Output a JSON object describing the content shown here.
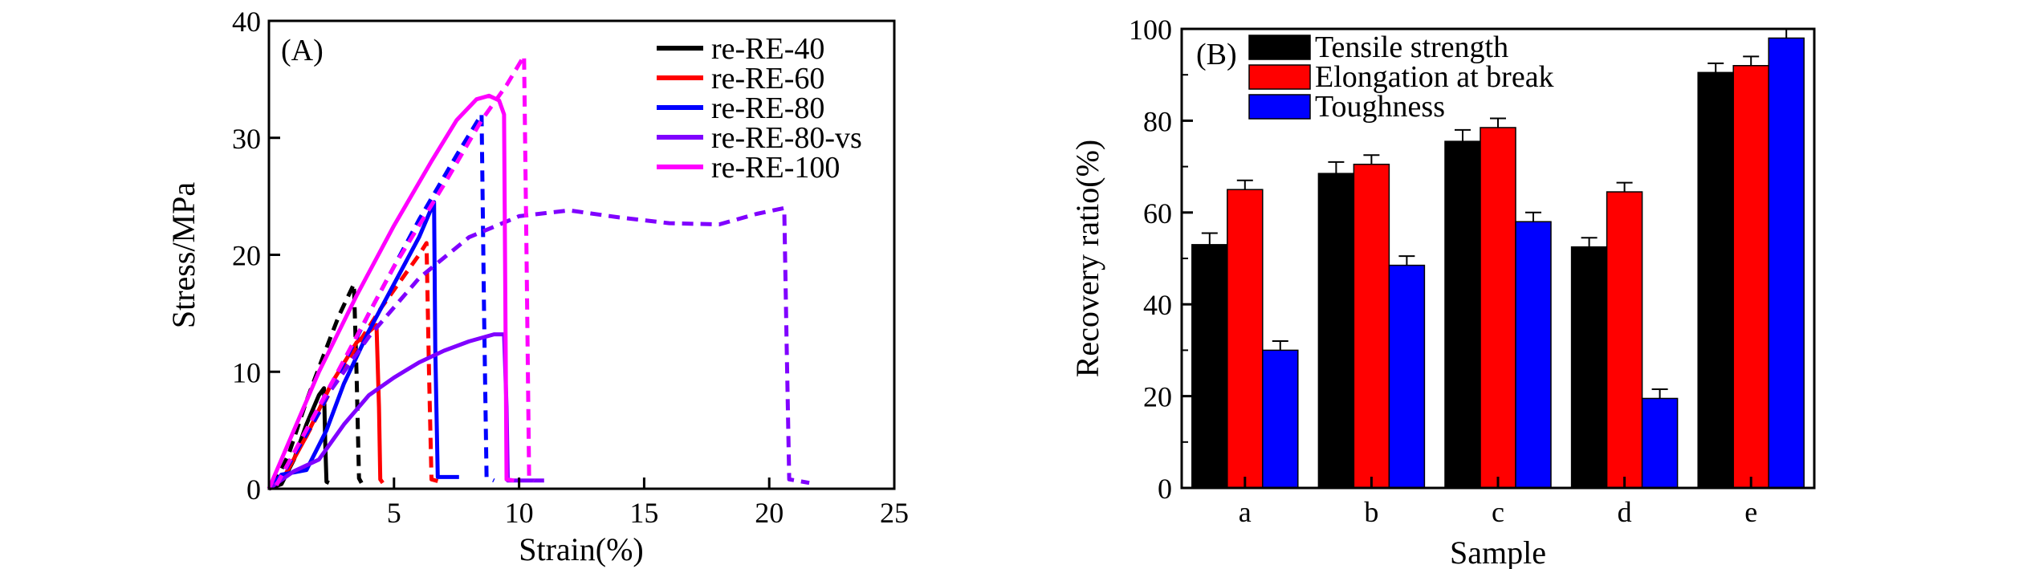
{
  "chart_data": [
    {
      "type": "line",
      "panel_label": "(A)",
      "xlabel": "Strain(%)",
      "ylabel": "Stress/MPa",
      "xlim": [
        0,
        25
      ],
      "ylim": [
        0,
        40
      ],
      "xticks": [
        5,
        10,
        15,
        20,
        25
      ],
      "yticks": [
        0,
        10,
        20,
        30,
        40
      ],
      "legend_position": "top-right",
      "series": [
        {
          "name": "re-RE-40",
          "color": "#000000",
          "solid": [
            [
              0,
              0
            ],
            [
              0.5,
              0.4
            ],
            [
              1.0,
              2.5
            ],
            [
              1.5,
              5.5
            ],
            [
              2.0,
              8.0
            ],
            [
              2.2,
              8.6
            ],
            [
              2.25,
              4.0
            ],
            [
              2.3,
              0.6
            ],
            [
              2.4,
              0.5
            ]
          ],
          "dashed": [
            [
              0.2,
              0.3
            ],
            [
              0.8,
              3.0
            ],
            [
              1.5,
              7.5
            ],
            [
              2.2,
              11.5
            ],
            [
              2.8,
              14.8
            ],
            [
              3.4,
              17.5
            ],
            [
              3.5,
              10.0
            ],
            [
              3.6,
              0.9
            ],
            [
              3.7,
              0.5
            ]
          ]
        },
        {
          "name": "re-RE-60",
          "color": "#ff0000",
          "solid": [
            [
              0,
              0
            ],
            [
              0.6,
              1.0
            ],
            [
              1.5,
              4.5
            ],
            [
              2.5,
              9.0
            ],
            [
              3.5,
              12.5
            ],
            [
              4.3,
              14.0
            ],
            [
              4.4,
              7.0
            ],
            [
              4.45,
              0.8
            ],
            [
              4.55,
              0.5
            ]
          ],
          "dashed": [
            [
              0.3,
              0.3
            ],
            [
              1.5,
              4.5
            ],
            [
              3.0,
              10.5
            ],
            [
              4.5,
              15.5
            ],
            [
              6.0,
              20.0
            ],
            [
              6.3,
              21.0
            ],
            [
              6.4,
              10.0
            ],
            [
              6.5,
              0.8
            ],
            [
              7.0,
              0.5
            ]
          ]
        },
        {
          "name": "re-RE-80",
          "color": "#0000ff",
          "solid": [
            [
              0,
              0
            ],
            [
              0.5,
              1.2
            ],
            [
              1.5,
              1.6
            ],
            [
              2.3,
              5.0
            ],
            [
              3.0,
              9.0
            ],
            [
              4.0,
              13.5
            ],
            [
              5.0,
              17.5
            ],
            [
              6.0,
              21.5
            ],
            [
              6.6,
              24.5
            ],
            [
              6.65,
              12.0
            ],
            [
              6.75,
              1.0
            ],
            [
              7.6,
              1.0
            ]
          ],
          "dashed": [
            [
              0.3,
              0.3
            ],
            [
              2.0,
              6.5
            ],
            [
              4.0,
              15.0
            ],
            [
              6.0,
              23.0
            ],
            [
              7.5,
              28.5
            ],
            [
              8.5,
              32.0
            ],
            [
              8.6,
              15.0
            ],
            [
              8.7,
              1.0
            ],
            [
              9.0,
              0.7
            ]
          ]
        },
        {
          "name": "re-RE-80-vs",
          "color": "#8000ff",
          "solid": [
            [
              0,
              0
            ],
            [
              1.0,
              1.5
            ],
            [
              2.0,
              2.5
            ],
            [
              3.0,
              5.5
            ],
            [
              4.0,
              8.0
            ],
            [
              5.0,
              9.5
            ],
            [
              6.0,
              10.8
            ],
            [
              7.0,
              11.8
            ],
            [
              8.0,
              12.6
            ],
            [
              9.0,
              13.2
            ],
            [
              9.4,
              13.2
            ],
            [
              9.5,
              7.0
            ],
            [
              9.55,
              0.7
            ],
            [
              11.0,
              0.7
            ]
          ],
          "dashed": [
            [
              0.3,
              0.3
            ],
            [
              2.0,
              7.0
            ],
            [
              4.0,
              13.0
            ],
            [
              6.0,
              18.0
            ],
            [
              8.0,
              21.5
            ],
            [
              10.0,
              23.3
            ],
            [
              12.0,
              23.8
            ],
            [
              14.0,
              23.2
            ],
            [
              16.0,
              22.7
            ],
            [
              18.0,
              22.6
            ],
            [
              19.5,
              23.5
            ],
            [
              20.6,
              24.0
            ],
            [
              20.7,
              12.0
            ],
            [
              20.8,
              0.8
            ],
            [
              21.6,
              0.5
            ]
          ]
        },
        {
          "name": "re-RE-100",
          "color": "#ff00ff",
          "solid": [
            [
              0,
              0
            ],
            [
              0.8,
              4.0
            ],
            [
              2.0,
              10.0
            ],
            [
              3.5,
              16.5
            ],
            [
              5.0,
              22.5
            ],
            [
              6.5,
              28.0
            ],
            [
              7.5,
              31.5
            ],
            [
              8.3,
              33.3
            ],
            [
              8.8,
              33.6
            ],
            [
              9.2,
              33.2
            ],
            [
              9.4,
              32.0
            ],
            [
              9.45,
              16.0
            ],
            [
              9.5,
              0.8
            ],
            [
              9.8,
              0.7
            ]
          ],
          "dashed": [
            [
              0.3,
              0.3
            ],
            [
              2.5,
              9.0
            ],
            [
              5.0,
              19.0
            ],
            [
              7.0,
              26.0
            ],
            [
              8.5,
              31.5
            ],
            [
              9.5,
              34.5
            ],
            [
              10.2,
              37.0
            ],
            [
              10.3,
              20.0
            ],
            [
              10.4,
              1.0
            ],
            [
              10.6,
              0.7
            ]
          ]
        }
      ]
    },
    {
      "type": "bar",
      "panel_label": "(B)",
      "xlabel": "Sample",
      "ylabel": "Recovery ratio(%)",
      "ylim": [
        0,
        100
      ],
      "yticks": [
        0,
        20,
        40,
        60,
        80,
        100
      ],
      "categories": [
        "a",
        "b",
        "c",
        "d",
        "e"
      ],
      "legend_position": "top-left",
      "series": [
        {
          "name": "Tensile strength",
          "color": "#000000",
          "values": [
            53,
            68.5,
            75.5,
            52.5,
            90.5
          ],
          "errors": [
            2.5,
            2.5,
            2.5,
            2.0,
            2.0
          ]
        },
        {
          "name": "Elongation at break",
          "color": "#ff0000",
          "values": [
            65,
            70.5,
            78.5,
            64.5,
            92
          ],
          "errors": [
            2.0,
            2.0,
            2.0,
            2.0,
            2.0
          ]
        },
        {
          "name": "Toughness",
          "color": "#0000ff",
          "values": [
            30,
            48.5,
            58,
            19.5,
            98
          ],
          "errors": [
            2.0,
            2.0,
            2.0,
            2.0,
            2.0
          ]
        }
      ]
    }
  ]
}
